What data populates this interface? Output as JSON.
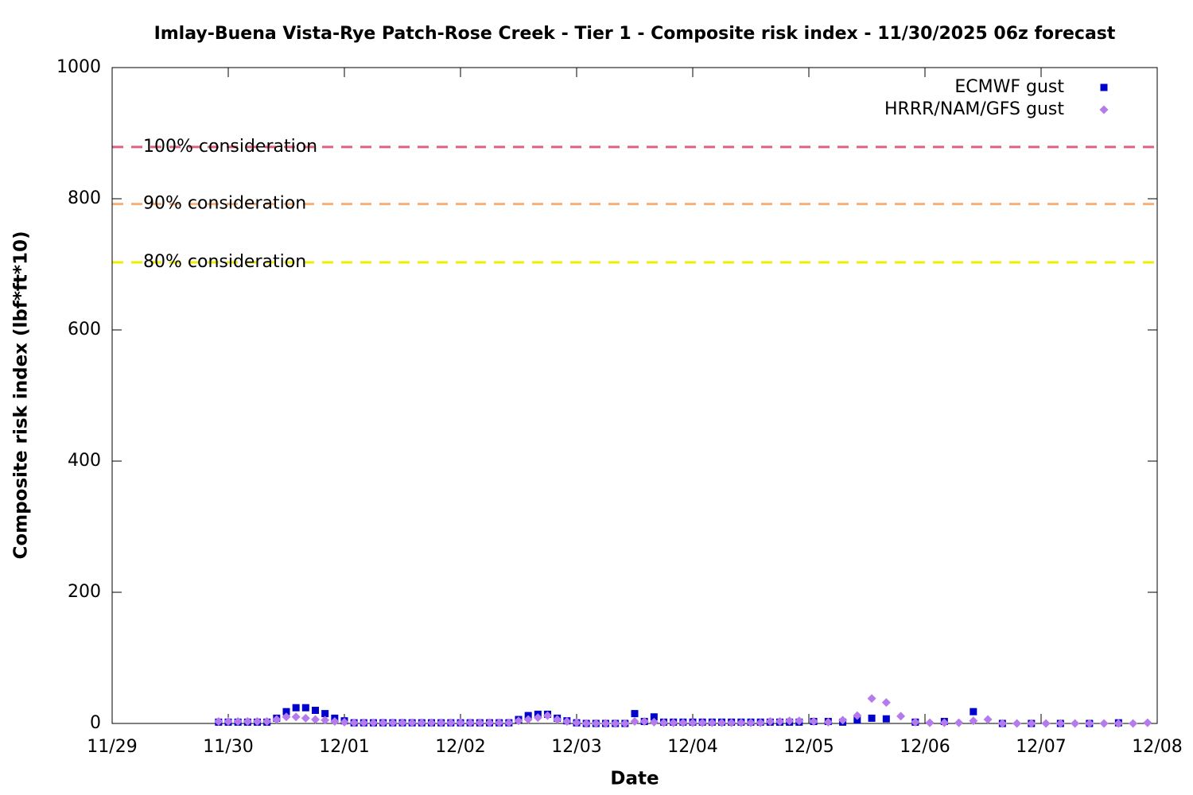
{
  "chart_data": {
    "type": "scatter",
    "title": "Imlay-Buena Vista-Rye Patch-Rose Creek - Tier 1 - Composite risk index - 11/30/2025 06z forecast",
    "xlabel": "Date",
    "ylabel": "Composite risk index (lbf*ft*10)",
    "xlim": [
      0,
      216
    ],
    "xticks": [
      {
        "value": 0,
        "label": "11/29"
      },
      {
        "value": 24,
        "label": "11/30"
      },
      {
        "value": 48,
        "label": "12/01"
      },
      {
        "value": 72,
        "label": "12/02"
      },
      {
        "value": 96,
        "label": "12/03"
      },
      {
        "value": 120,
        "label": "12/04"
      },
      {
        "value": 144,
        "label": "12/05"
      },
      {
        "value": 168,
        "label": "12/06"
      },
      {
        "value": 192,
        "label": "12/07"
      },
      {
        "value": 216,
        "label": "12/08"
      }
    ],
    "ylim": [
      0,
      1000
    ],
    "yticks": [
      0,
      200,
      400,
      600,
      800,
      1000
    ],
    "legend": "upper right",
    "reference_lines": [
      {
        "label": "100% consideration",
        "value": 879,
        "color": "#e0607e"
      },
      {
        "label": "90% consideration",
        "value": 792,
        "color": "#f7b07c"
      },
      {
        "label": "80% consideration",
        "value": 703,
        "color": "#eeee00"
      }
    ],
    "series": [
      {
        "name": "ECMWF gust",
        "color": "#0000cc",
        "marker": "square",
        "x": [
          22,
          24,
          26,
          28,
          30,
          32,
          34,
          36,
          38,
          40,
          42,
          44,
          46,
          48,
          50,
          52,
          54,
          56,
          58,
          60,
          62,
          64,
          66,
          68,
          70,
          72,
          74,
          76,
          78,
          80,
          82,
          84,
          86,
          88,
          90,
          92,
          94,
          96,
          98,
          100,
          102,
          104,
          106,
          108,
          110,
          112,
          114,
          116,
          118,
          120,
          122,
          124,
          126,
          128,
          130,
          132,
          134,
          136,
          138,
          140,
          142,
          145,
          148,
          151,
          154,
          157,
          160,
          166,
          172,
          178,
          184,
          190,
          196,
          202,
          208
        ],
        "values": [
          2,
          2,
          2,
          2,
          2,
          2,
          8,
          18,
          24,
          24,
          20,
          15,
          8,
          4,
          1,
          1,
          1,
          1,
          1,
          1,
          1,
          1,
          1,
          1,
          1,
          1,
          1,
          1,
          1,
          1,
          1,
          6,
          12,
          14,
          14,
          8,
          4,
          1,
          0,
          0,
          0,
          0,
          0,
          15,
          3,
          10,
          2,
          2,
          2,
          2,
          2,
          2,
          2,
          2,
          2,
          2,
          2,
          2,
          2,
          2,
          2,
          3,
          3,
          2,
          5,
          8,
          7,
          2,
          3,
          18,
          0,
          0,
          0,
          0,
          1
        ]
      },
      {
        "name": "HRRR/NAM/GFS gust",
        "color": "#b57bed",
        "marker": "diamond",
        "x": [
          22,
          24,
          26,
          28,
          30,
          32,
          34,
          36,
          38,
          40,
          42,
          44,
          46,
          48,
          50,
          52,
          54,
          56,
          58,
          60,
          62,
          64,
          66,
          68,
          70,
          72,
          74,
          76,
          78,
          80,
          82,
          84,
          86,
          88,
          90,
          92,
          94,
          96,
          98,
          100,
          102,
          104,
          106,
          108,
          110,
          112,
          114,
          116,
          118,
          120,
          122,
          124,
          126,
          128,
          130,
          132,
          134,
          136,
          138,
          140,
          142,
          145,
          148,
          151,
          154,
          157,
          160,
          163,
          166,
          169,
          172,
          175,
          178,
          181,
          184,
          187,
          190,
          193,
          196,
          199,
          202,
          205,
          208,
          211,
          214
        ],
        "values": [
          3,
          3,
          3,
          3,
          3,
          3,
          6,
          10,
          10,
          8,
          6,
          5,
          3,
          2,
          1,
          1,
          1,
          1,
          1,
          1,
          1,
          1,
          1,
          1,
          1,
          1,
          1,
          1,
          1,
          1,
          1,
          4,
          6,
          9,
          12,
          6,
          3,
          1,
          0,
          0,
          0,
          0,
          0,
          3,
          3,
          2,
          1,
          1,
          1,
          1,
          1,
          1,
          1,
          1,
          1,
          1,
          1,
          3,
          3,
          4,
          4,
          3,
          2,
          5,
          12,
          38,
          32,
          11,
          2,
          1,
          1,
          1,
          4,
          6,
          0,
          0,
          0,
          0,
          0,
          0,
          0,
          0,
          0,
          0,
          1
        ]
      }
    ]
  }
}
